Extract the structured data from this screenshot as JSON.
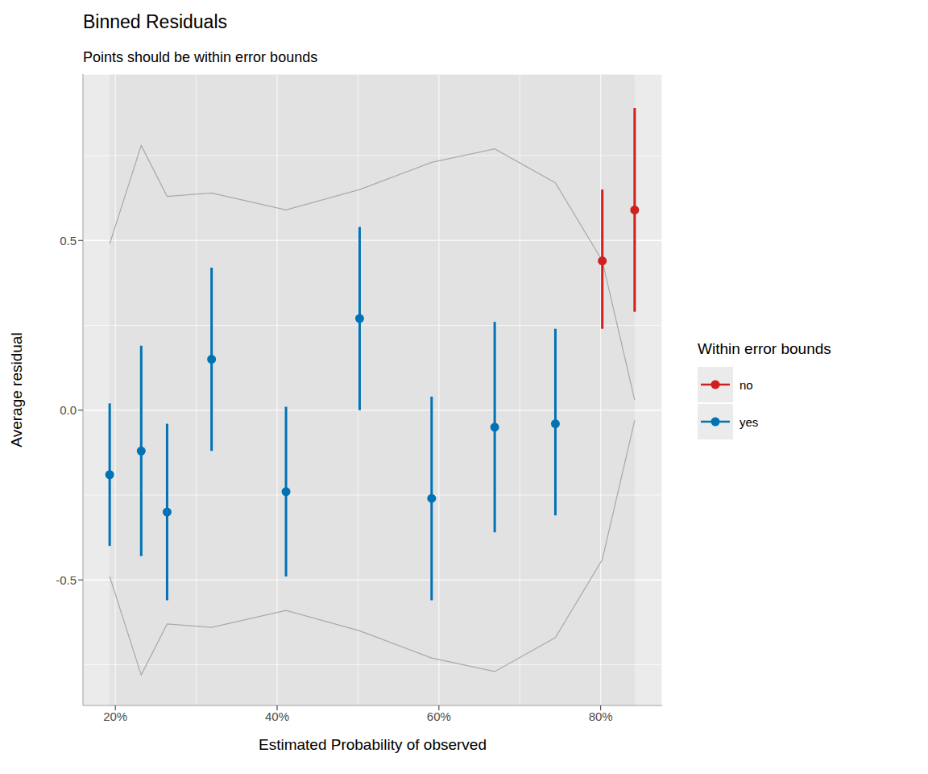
{
  "chart_data": {
    "type": "scatter",
    "title": "Binned Residuals",
    "subtitle": "Points should be within error bounds",
    "x_label": "Estimated Probability of observed",
    "y_label": "Average residual",
    "xlim": [
      16.0,
      87.6
    ],
    "xticks": [
      {
        "value": 20,
        "label": "20%"
      },
      {
        "value": 40,
        "label": "40%"
      },
      {
        "value": 60,
        "label": "60%"
      },
      {
        "value": 80,
        "label": "80%"
      }
    ],
    "ylim": [
      -0.87,
      0.99
    ],
    "yticks": [
      -0.5,
      {
        "value": 0,
        "label": "0.0"
      },
      0.5
    ],
    "grid": true,
    "legend": "right",
    "legend_title": "Within error bounds",
    "series": [
      {
        "name": "no",
        "color": "#cd201f",
        "marker": "circle",
        "x": [
          80.2,
          84.2
        ],
        "values": [
          0.44,
          0.59
        ],
        "error_low": [
          0.24,
          0.29
        ],
        "error_high": [
          0.65,
          0.89
        ]
      },
      {
        "name": "yes",
        "color": "#0072b5",
        "marker": "circle",
        "x": [
          19.3,
          23.2,
          26.4,
          31.9,
          41.1,
          50.2,
          59.1,
          66.9,
          74.4
        ],
        "values": [
          -0.19,
          -0.12,
          -0.3,
          0.15,
          -0.24,
          0.27,
          -0.26,
          -0.05,
          -0.04
        ],
        "error_low": [
          -0.4,
          -0.43,
          -0.56,
          -0.12,
          -0.49,
          0.0,
          -0.56,
          -0.36,
          -0.31
        ],
        "error_high": [
          0.02,
          0.19,
          -0.04,
          0.42,
          0.01,
          0.54,
          0.04,
          0.26,
          0.24
        ]
      }
    ],
    "bounds": {
      "color": "#a9a9a9",
      "x": [
        19.3,
        23.2,
        26.4,
        31.9,
        41.1,
        50.2,
        59.1,
        66.9,
        74.4,
        80.2,
        84.2
      ],
      "upper": [
        0.49,
        0.78,
        0.63,
        0.64,
        0.59,
        0.65,
        0.73,
        0.77,
        0.67,
        0.44,
        0.03
      ],
      "lower": [
        -0.49,
        -0.78,
        -0.63,
        -0.64,
        -0.59,
        -0.65,
        -0.73,
        -0.77,
        -0.67,
        -0.44,
        -0.03
      ]
    }
  }
}
